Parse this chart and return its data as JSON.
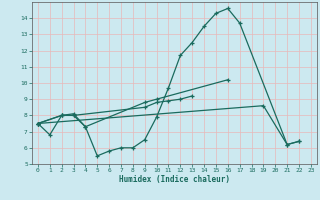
{
  "xlabel": "Humidex (Indice chaleur)",
  "background_color": "#cce9f0",
  "grid_color": "#e8b8b8",
  "line_color": "#1a6b5e",
  "x_all": [
    0,
    1,
    2,
    3,
    4,
    5,
    6,
    7,
    8,
    9,
    10,
    11,
    12,
    13,
    14,
    15,
    16,
    17,
    18,
    19,
    20,
    21,
    22,
    23
  ],
  "line1_x": [
    0,
    1,
    2,
    3,
    4,
    5,
    6,
    7,
    8,
    9,
    10,
    11,
    12,
    13,
    14,
    15,
    16,
    17,
    21,
    22
  ],
  "line1_y": [
    7.5,
    6.8,
    8.0,
    8.0,
    7.3,
    5.5,
    5.8,
    6.0,
    6.0,
    6.5,
    7.9,
    9.7,
    11.7,
    12.5,
    13.5,
    14.3,
    14.6,
    13.7,
    6.2,
    6.4
  ],
  "line2_x": [
    0,
    2,
    3,
    4,
    9,
    10,
    16
  ],
  "line2_y": [
    7.5,
    8.0,
    8.1,
    7.3,
    8.8,
    9.0,
    10.2
  ],
  "line3_x": [
    0,
    2,
    3,
    9,
    10,
    11,
    12,
    13
  ],
  "line3_y": [
    7.5,
    8.0,
    8.0,
    8.5,
    8.8,
    8.9,
    9.0,
    9.2
  ],
  "line4_x": [
    0,
    19,
    21,
    22
  ],
  "line4_y": [
    7.5,
    8.6,
    6.2,
    6.4
  ],
  "ylim": [
    5,
    15
  ],
  "xlim": [
    -0.5,
    23.5
  ],
  "yticks": [
    5,
    6,
    7,
    8,
    9,
    10,
    11,
    12,
    13,
    14
  ],
  "xticks": [
    0,
    1,
    2,
    3,
    4,
    5,
    6,
    7,
    8,
    9,
    10,
    11,
    12,
    13,
    14,
    15,
    16,
    17,
    18,
    19,
    20,
    21,
    22,
    23
  ]
}
